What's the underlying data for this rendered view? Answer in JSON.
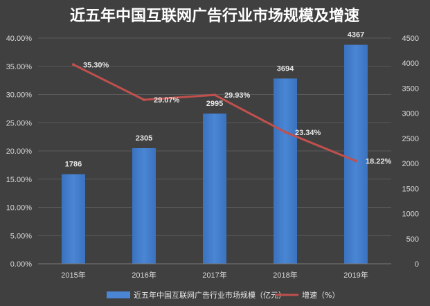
{
  "chart_data": {
    "type": "bar",
    "title": "近五年中国互联网广告行业市场规模及增速",
    "categories": [
      "2015年",
      "2016年",
      "2017年",
      "2018年",
      "2019年"
    ],
    "series": [
      {
        "name": "近五年中国互联网广告行业市场规模（亿元）",
        "type": "bar",
        "axis": "right",
        "values": [
          1786,
          2305,
          2995,
          3694,
          4367
        ],
        "labels": [
          "1786",
          "2305",
          "2995",
          "3694",
          "4367"
        ],
        "color": "#4a86d4"
      },
      {
        "name": "增速（%）",
        "type": "line",
        "axis": "left",
        "values": [
          35.3,
          29.07,
          29.93,
          23.34,
          18.22
        ],
        "labels": [
          "35.30%",
          "29.07%",
          "29.93%",
          "23.34%",
          "18.22%"
        ],
        "color": "#c0504d"
      }
    ],
    "y_left": {
      "range": [
        0,
        40
      ],
      "ticks": [
        "0.00%",
        "5.00%",
        "10.00%",
        "15.00%",
        "20.00%",
        "25.00%",
        "30.00%",
        "35.00%",
        "40.00%"
      ]
    },
    "y_right": {
      "range": [
        0,
        4500
      ],
      "ticks": [
        "0",
        "500",
        "1000",
        "1500",
        "2000",
        "2500",
        "3000",
        "3500",
        "4000",
        "4500"
      ]
    },
    "grid": true,
    "legend": "bottom"
  }
}
